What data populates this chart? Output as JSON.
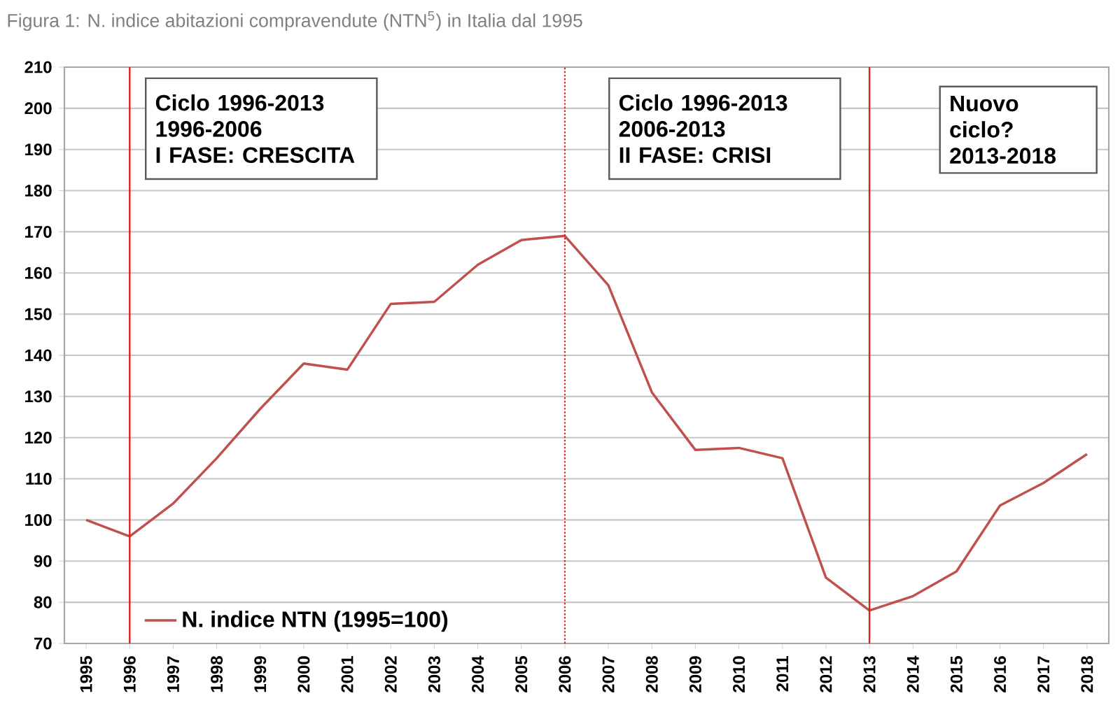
{
  "chart_data": {
    "type": "line",
    "title": "Figura 1: N. indice abitazioni compravendute (NTN$^{5}$) in Italia dal 1995",
    "x": [
      1995,
      1996,
      1997,
      1998,
      1999,
      2000,
      2001,
      2002,
      2003,
      2004,
      2005,
      2006,
      2007,
      2008,
      2009,
      2010,
      2011,
      2012,
      2013,
      2014,
      2015,
      2016,
      2017,
      2018
    ],
    "series": [
      {
        "name": "N. indice NTN (1995=100)",
        "color": "#c0504d",
        "values": [
          100,
          96,
          104,
          115,
          127,
          138,
          136.5,
          152.5,
          153,
          162,
          168,
          169,
          157,
          131,
          117,
          117.5,
          115,
          86,
          78,
          81.5,
          87.5,
          103.5,
          109,
          116
        ]
      }
    ],
    "xlim": [
      1994.5,
      2018.5
    ],
    "xticks": [
      1995,
      1996,
      1997,
      1998,
      1999,
      2000,
      2001,
      2002,
      2003,
      2004,
      2005,
      2006,
      2007,
      2008,
      2009,
      2010,
      2011,
      2012,
      2013,
      2014,
      2015,
      2016,
      2017,
      2018
    ],
    "ylim": [
      70,
      210
    ],
    "yticks": [
      70,
      80,
      90,
      100,
      110,
      120,
      130,
      140,
      150,
      160,
      170,
      180,
      190,
      200,
      210
    ],
    "grid": "y",
    "legend": "bottom left",
    "marker": "none",
    "line_style": "solid",
    "ref_lines": [
      {
        "axis": "x",
        "value": 1996,
        "color": "#e02020",
        "line_style": "solid"
      },
      {
        "axis": "x",
        "value": 2006,
        "color": "#e02020",
        "line_style": "dotted"
      },
      {
        "axis": "x",
        "value": 2013,
        "color": "#e02020",
        "line_style": "solid"
      }
    ],
    "annotations": [
      "Ciclo 1996-2013",
      "1996-2006",
      "I FASE: CRESCITA",
      "Ciclo 1996-2013",
      "2006-2013",
      "II FASE: CRISI",
      "Nuovo ciclo?",
      "2013-2018"
    ]
  }
}
